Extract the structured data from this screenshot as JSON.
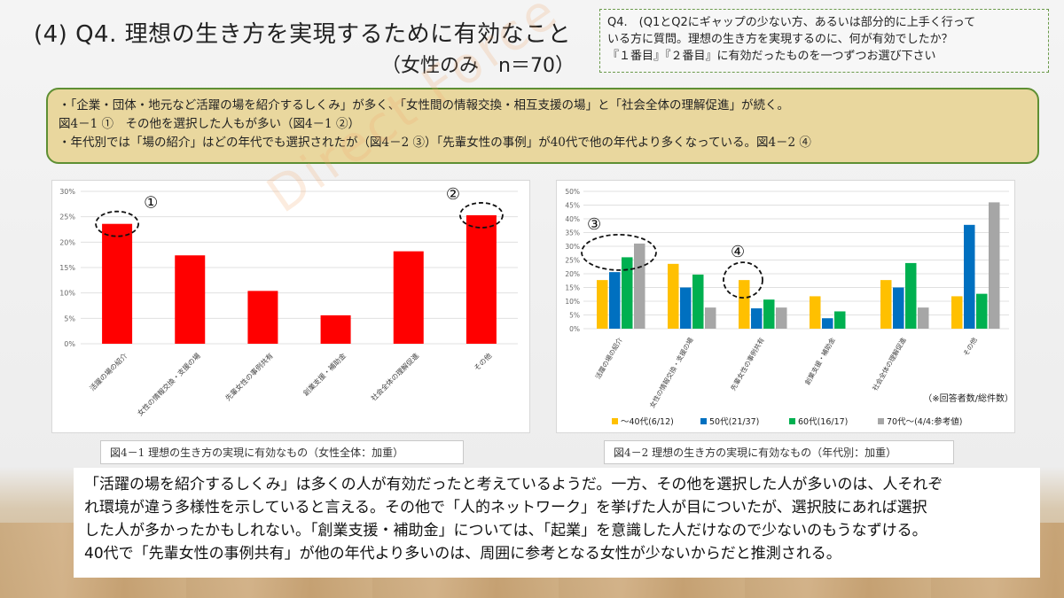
{
  "slide": {
    "title": "(4) Q4. 理想の生き方を実現するために有効なこと",
    "subtitle": "（女性のみ　n＝70）",
    "question_box": {
      "line1": "Q4.　(Q1とQ2にギャップの少ない方、あるいは部分的に上手く行って",
      "line2": "いる方に質問。理想の生き方を実現するのに、何が有効でしたか？",
      "line3": "『１番目』『２番目』に有効だったものを一つずつお選び下さい"
    },
    "summary": {
      "line1": "・「企業・団体・地元など活躍の場を紹介するしくみ」が多く、「女性間の情報交換・相互支援の場」と「社会全体の理解促進」が続く。",
      "line2": "図4－1 ①　その他を選択した人もが多い（図4－1 ②）",
      "line3": "・年代別では「場の紹介」はどの年代でも選択されたが（図4－2 ③）「先輩女性の事例」が40代で他の年代より多くなっている。図4－2 ④"
    },
    "watermark": "Direct Force",
    "caption_left": "図4－1 理想の生き方の実現に有効なもの（女性全体：加重）",
    "caption_right": "図4－2 理想の生き方の実現に有効なもの（年代別：加重）",
    "bottom_text": {
      "line1": "「活躍の場を紹介するしくみ」は多くの人が有効だったと考えているようだ。一方、その他を選択した人が多いのは、人それぞ",
      "line2": "れ環境が違う多様性を示していると言える。その他で「人的ネットワーク」を挙げた人が目についたが、選択肢にあれば選択",
      "line3": "した人が多かったかもしれない。「創業支援・補助金」については、「起業」を意識した人だけなので少ないのもうなずける。",
      "line4": "40代で「先輩女性の事例共有」が他の年代より多いのは、周囲に参考となる女性が少ないからだと推測される。"
    }
  },
  "chart_data": [
    {
      "type": "bar",
      "categories": [
        "活躍の場の紹介",
        "女性の情報交換・支援の場",
        "先輩女性の事例共有",
        "創業支援・補助金",
        "社会全体の理解促進",
        "その他"
      ],
      "values": [
        23.6,
        17.4,
        10.4,
        5.6,
        18.2,
        25.3
      ],
      "ylim": [
        0,
        30
      ],
      "yticks": [
        "0%",
        "5%",
        "10%",
        "15%",
        "20%",
        "25%",
        "30%"
      ],
      "color": "#ff0000",
      "annotations": [
        {
          "label": "①",
          "category_index": 0
        },
        {
          "label": "②",
          "category_index": 5
        }
      ],
      "grid": true
    },
    {
      "type": "bar",
      "categories": [
        "活躍の場の紹介",
        "女性の情報交換・支援の場",
        "先輩女性の事例共有",
        "創業支援・補助金",
        "社会全体の理解促進",
        "その他"
      ],
      "series": [
        {
          "name": "～40代(6/12)",
          "color": "#ffc000",
          "values": [
            17.7,
            23.6,
            17.7,
            11.8,
            17.7,
            11.8
          ]
        },
        {
          "name": "50代(21/37)",
          "color": "#0070c0",
          "values": [
            20.6,
            15.0,
            7.4,
            3.8,
            15.0,
            37.8
          ]
        },
        {
          "name": "60代(16/17)",
          "color": "#00b050",
          "values": [
            26.0,
            19.7,
            10.6,
            6.3,
            23.9,
            12.7
          ]
        },
        {
          "name": "70代～(4/4:参考値)",
          "color": "#a6a6a6",
          "values": [
            31.0,
            7.7,
            7.7,
            0,
            7.7,
            46.0
          ]
        }
      ],
      "ylim": [
        0,
        50
      ],
      "yticks": [
        "0%",
        "5%",
        "10%",
        "15%",
        "20%",
        "25%",
        "30%",
        "35%",
        "40%",
        "45%",
        "50%"
      ],
      "note": "（※回答者数/総件数）",
      "annotations": [
        {
          "label": "③",
          "category_index": 0
        },
        {
          "label": "④",
          "category_index": 2
        }
      ],
      "legend_position": "bottom",
      "grid": true
    }
  ]
}
